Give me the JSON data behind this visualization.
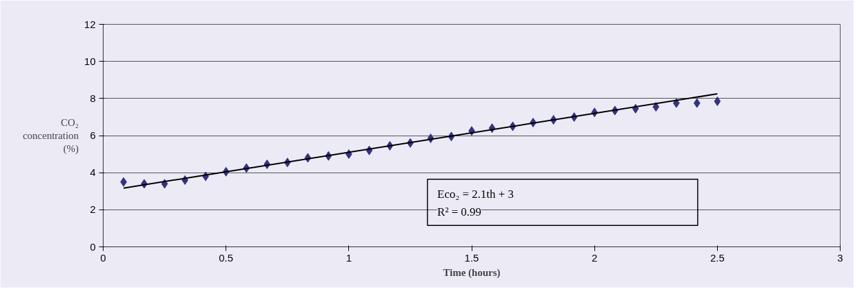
{
  "chart_data": {
    "type": "scatter",
    "xlabel": "Time (hours)",
    "ylabel": "CO₂ concentration (%)",
    "annotations": [
      "Eco₂ = 2.1th + 3",
      "R² = 0.99"
    ],
    "series": [
      {
        "color": "#333380",
        "marker": "diamond",
        "x": [
          0.083,
          0.167,
          0.25,
          0.333,
          0.417,
          0.5,
          0.583,
          0.667,
          0.75,
          0.833,
          0.917,
          1.0,
          1.083,
          1.167,
          1.25,
          1.333,
          1.417,
          1.5,
          1.583,
          1.667,
          1.75,
          1.833,
          1.917,
          2.0,
          2.083,
          2.167,
          2.25,
          2.333,
          2.417,
          2.5
        ],
        "values": [
          3.5,
          3.4,
          3.4,
          3.6,
          3.8,
          4.05,
          4.25,
          4.45,
          4.55,
          4.8,
          4.9,
          5.0,
          5.2,
          5.45,
          5.6,
          5.85,
          5.95,
          6.25,
          6.4,
          6.5,
          6.7,
          6.85,
          7.0,
          7.25,
          7.35,
          7.45,
          7.55,
          7.75,
          7.75,
          7.85
        ]
      },
      {
        "type": "line",
        "color": "#000000",
        "x": [
          0.083,
          2.5
        ],
        "values": [
          3.17,
          8.25
        ]
      }
    ],
    "xlim": [
      0,
      3
    ],
    "xticks": [
      0,
      0.5,
      1,
      1.5,
      2,
      2.5,
      3
    ],
    "ylim": [
      0,
      12
    ],
    "yticks": [
      0,
      2,
      4,
      6,
      8,
      10,
      12
    ],
    "grid": "y"
  }
}
